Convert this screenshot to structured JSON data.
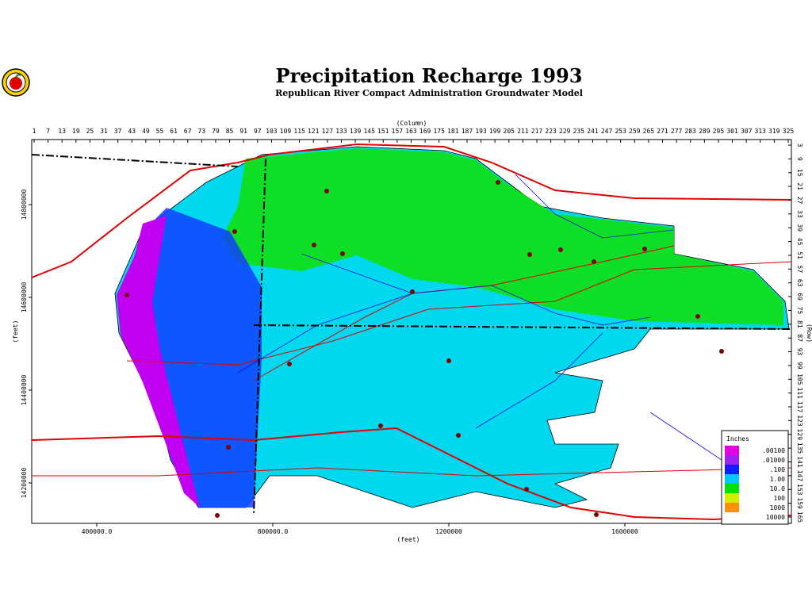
{
  "header": {
    "title": "Precipitation Recharge 1993",
    "subtitle": "Republican River Compact Administration Groundwater Model"
  },
  "map": {
    "column_axis_title": "(Column)",
    "columns": [
      1,
      7,
      13,
      19,
      25,
      31,
      37,
      43,
      49,
      55,
      61,
      67,
      73,
      79,
      85,
      91,
      97,
      103,
      109,
      115,
      121,
      127,
      133,
      139,
      145,
      151,
      157,
      163,
      169,
      175,
      181,
      187,
      193,
      199,
      205,
      211,
      217,
      223,
      229,
      235,
      241,
      247,
      253,
      259,
      265,
      271,
      277,
      283,
      289,
      295,
      301,
      307,
      313,
      319,
      325
    ],
    "row_axis_title": "(Row)",
    "rows": [
      3,
      9,
      15,
      21,
      27,
      33,
      39,
      45,
      51,
      57,
      63,
      69,
      75,
      81,
      87,
      93,
      99,
      105,
      111,
      117,
      123,
      129,
      135,
      141,
      147,
      153,
      159,
      165
    ],
    "x_axis_title": "(feet)",
    "xticks": [
      {
        "value": 400000,
        "label": "400000.0"
      },
      {
        "value": 800000,
        "label": "800000.0"
      },
      1200000,
      1600000
    ],
    "y_axis_title": "(feet)",
    "yticks": [
      14800000,
      14600000,
      14400000,
      14200000
    ],
    "legend": {
      "title": "Inches",
      "entries": [
        {
          "label": ".00100",
          "color": "#e000e0"
        },
        {
          "label": ".01000",
          "color": "#a020f0"
        },
        {
          "label": ".100",
          "color": "#0020ff"
        },
        {
          "label": "1.00",
          "color": "#00c8ff"
        },
        {
          "label": "10.0",
          "color": "#00e000"
        },
        {
          "label": "100",
          "color": "#d0f000"
        },
        {
          "label": "1000",
          "color": "#ff9000"
        },
        {
          "label": "10000",
          "color": "#ffffff"
        }
      ]
    }
  }
}
